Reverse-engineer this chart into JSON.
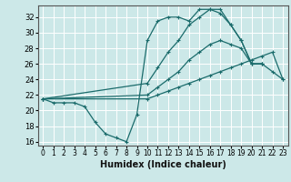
{
  "xlabel": "Humidex (Indice chaleur)",
  "xlim": [
    -0.5,
    23.5
  ],
  "ylim": [
    15.5,
    33.5
  ],
  "yticks": [
    16,
    18,
    20,
    22,
    24,
    26,
    28,
    30,
    32
  ],
  "xticks": [
    0,
    1,
    2,
    3,
    4,
    5,
    6,
    7,
    8,
    9,
    10,
    11,
    12,
    13,
    14,
    15,
    16,
    17,
    18,
    19,
    20,
    21,
    22,
    23
  ],
  "bg_color": "#cce8e8",
  "line_color": "#1a6b6b",
  "grid_color": "#ffffff",
  "lines": [
    {
      "x": [
        0,
        1,
        2,
        3,
        4,
        5,
        6,
        7,
        8,
        9,
        10,
        11,
        12,
        13,
        14,
        15,
        16,
        17,
        18,
        19,
        20,
        21
      ],
      "y": [
        21.5,
        21.0,
        21.0,
        21.0,
        20.5,
        18.5,
        17.0,
        16.5,
        16.0,
        19.5,
        29.0,
        31.5,
        32.0,
        32.0,
        31.5,
        33.0,
        33.0,
        32.5,
        31.0,
        29.0,
        26.0,
        26.0
      ]
    },
    {
      "x": [
        0,
        10,
        11,
        12,
        13,
        14,
        15,
        16,
        17,
        18,
        19,
        20,
        21
      ],
      "y": [
        21.5,
        23.5,
        25.5,
        27.5,
        29.0,
        31.0,
        32.0,
        33.0,
        33.0,
        31.0,
        29.0,
        26.0,
        26.0
      ]
    },
    {
      "x": [
        0,
        10,
        11,
        12,
        13,
        14,
        15,
        16,
        17,
        18,
        19,
        20,
        21,
        22,
        23
      ],
      "y": [
        21.5,
        22.0,
        23.0,
        24.0,
        25.0,
        26.5,
        27.5,
        28.5,
        29.0,
        28.5,
        28.0,
        26.0,
        26.0,
        25.0,
        24.0
      ]
    },
    {
      "x": [
        0,
        10,
        11,
        12,
        13,
        14,
        15,
        16,
        17,
        18,
        19,
        20,
        21,
        22,
        23
      ],
      "y": [
        21.5,
        21.5,
        22.0,
        22.5,
        23.0,
        23.5,
        24.0,
        24.5,
        25.0,
        25.5,
        26.0,
        26.5,
        27.0,
        27.5,
        24.0
      ]
    }
  ]
}
